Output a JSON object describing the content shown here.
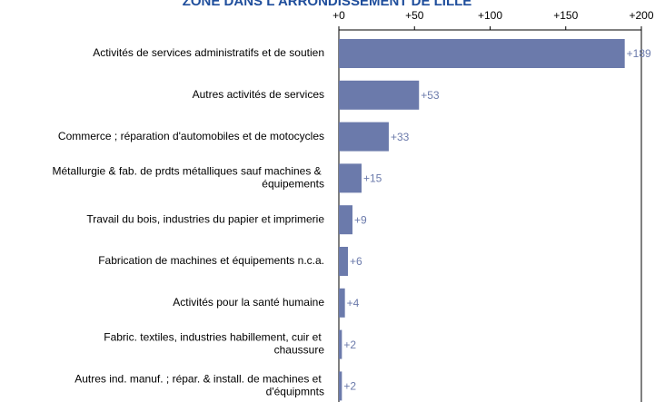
{
  "chart_data": {
    "type": "barh",
    "title": "ZONE DANS L'ARRONDISSEMENT DE LILLE",
    "categories": [
      "Activités de services administratifs et de soutien",
      "Autres activités de services",
      "Commerce ; réparation d'automobiles et de motocycles",
      "Métallurgie & fab. de prdts métalliques sauf machines & équipements",
      "Travail du bois, industries du papier et imprimerie",
      "Fabrication de machines et équipements n.c.a.",
      "Activités pour la santé humaine",
      "Fabric. textiles, industries habillement, cuir et chaussure",
      "Autres ind. manuf. ; répar. & install. de machines et d'équipmnts"
    ],
    "values": [
      189,
      53,
      33,
      15,
      9,
      6,
      4,
      2,
      2
    ],
    "value_labels": [
      "+189",
      "+53",
      "+33",
      "+15",
      "+9",
      "+6",
      "+4",
      "+2",
      "+2"
    ],
    "color": "#6b7aab",
    "xlim": [
      0,
      200
    ],
    "xticks": [
      {
        "value": 0,
        "label": "+0"
      },
      {
        "value": 50,
        "label": "+50"
      },
      {
        "value": 100,
        "label": "+100"
      },
      {
        "value": 150,
        "label": "+150"
      },
      {
        "value": 200,
        "label": "+200"
      }
    ]
  }
}
